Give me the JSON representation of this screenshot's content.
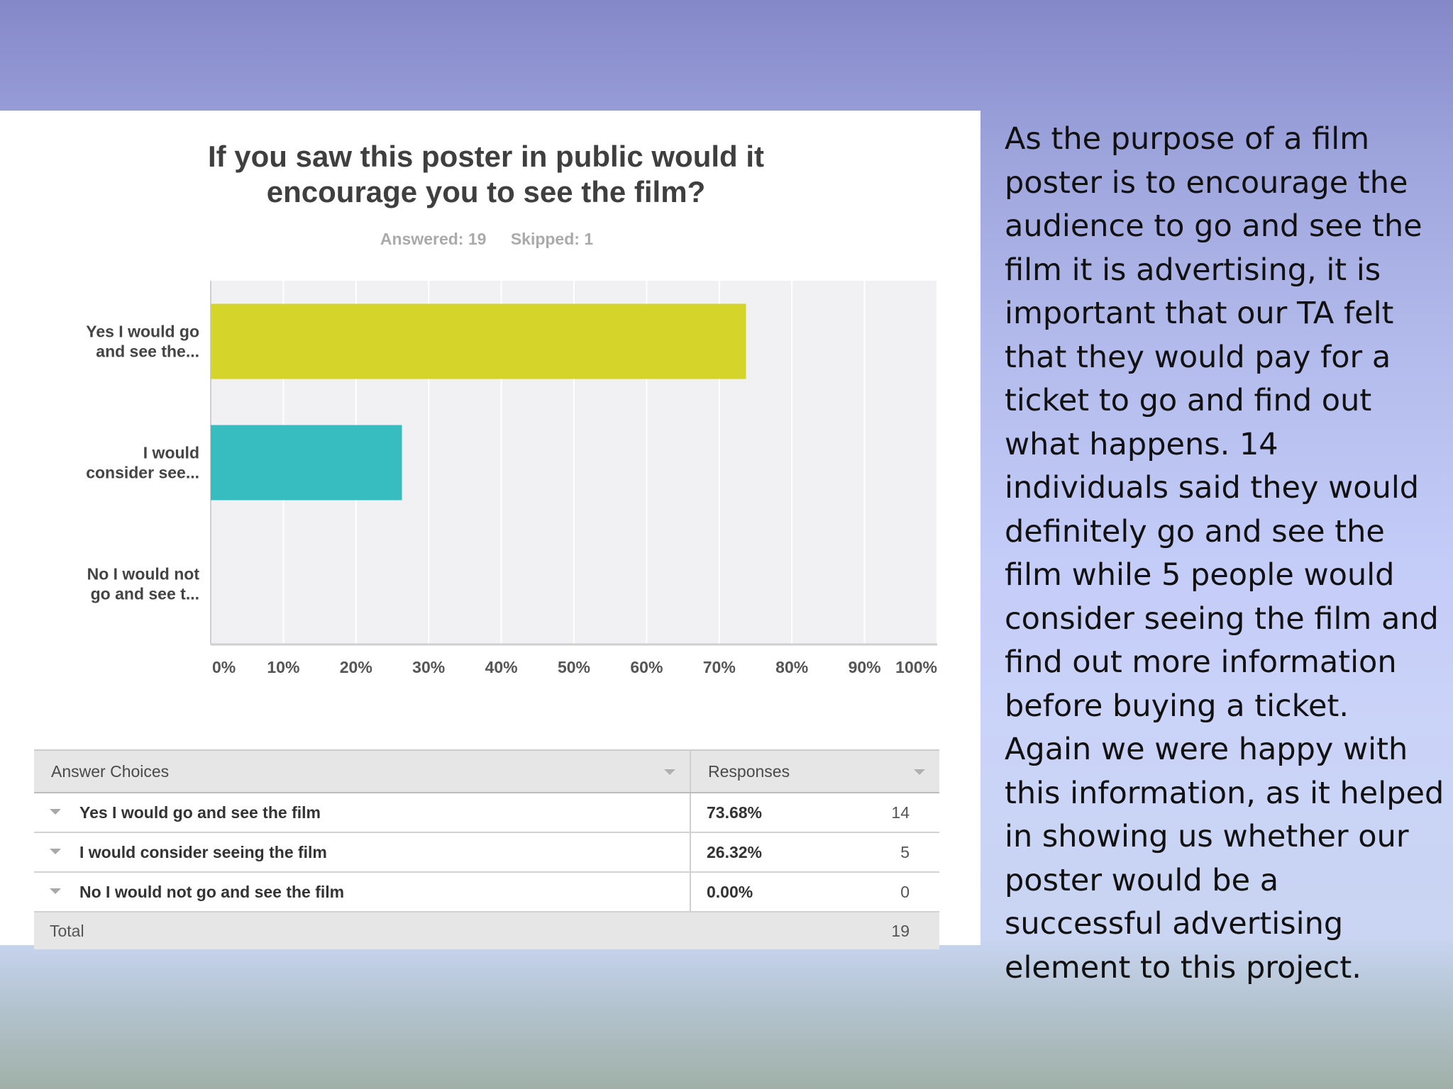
{
  "chart_data": {
    "type": "bar",
    "orientation": "horizontal",
    "title": "If you saw this poster in public would it encourage you to see the film?",
    "stats": {
      "answered": "Answered: 19",
      "skipped": "Skipped: 1"
    },
    "categories": [
      "Yes I would go and see the...",
      "I would consider see...",
      "No I would not go and see t..."
    ],
    "category_label_lines": [
      [
        "Yes I would go",
        "and see the..."
      ],
      [
        "I would",
        "consider see..."
      ],
      [
        "No I would not",
        "go and see t..."
      ]
    ],
    "values": [
      73.68,
      26.32,
      0.0
    ],
    "colors": [
      "#d4d42a",
      "#37bdc0",
      "#9a6fc0"
    ],
    "xlim": [
      0,
      100
    ],
    "xticks": [
      "0%",
      "10%",
      "20%",
      "30%",
      "40%",
      "50%",
      "60%",
      "70%",
      "80%",
      "90%",
      "100%"
    ],
    "grid": true
  },
  "table": {
    "headers": {
      "choices": "Answer Choices",
      "responses": "Responses"
    },
    "rows": [
      {
        "choice": "Yes I would go and see the film",
        "percent": "73.68%",
        "count": "14"
      },
      {
        "choice": "I would consider seeing the film",
        "percent": "26.32%",
        "count": "5"
      },
      {
        "choice": "No I would not go and see the film",
        "percent": "0.00%",
        "count": "0"
      }
    ],
    "total_label": "Total",
    "total_value": "19"
  },
  "side_text": "As the purpose of a film poster is to encourage the audience to go and see the film it is advertising, it is important that our TA felt that they would pay for a ticket to go and find out what happens. 14 individuals said they would definitely go and see the film while 5 people would consider seeing the film and find out more information before buying a ticket.\n Again we were happy with this information, as it helped in showing us whether our poster would be a successful advertising element to this project."
}
